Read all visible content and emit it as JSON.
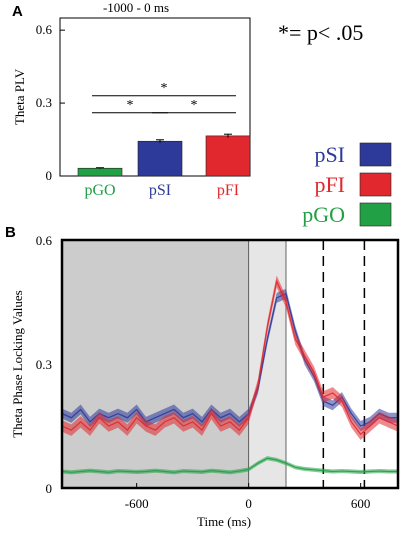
{
  "panel_a": {
    "label": "A",
    "window_title": "-1000 - 0 ms",
    "sig_note": "*= p< .05",
    "significance_marker": "*"
  },
  "panel_b": {
    "label": "B"
  },
  "legend": [
    {
      "name": "pSI",
      "color": "#2e3a9a"
    },
    {
      "name": "pFI",
      "color": "#e0282e"
    },
    {
      "name": "pGO",
      "color": "#22a046"
    }
  ],
  "chart_data": [
    {
      "type": "bar",
      "title": "-1000 - 0 ms",
      "ylabel": "Theta PLV",
      "categories": [
        "pGO",
        "pSI",
        "pFI"
      ],
      "values": [
        0.032,
        0.143,
        0.165
      ],
      "errors": [
        0.002,
        0.006,
        0.007
      ],
      "colors": [
        "#22a046",
        "#2e3a9a",
        "#e0282e"
      ],
      "ylim": [
        0,
        0.65
      ],
      "yticks": [
        0,
        0.3,
        0.6
      ],
      "ytick_labels": [
        "0",
        "0.3",
        "0.6"
      ],
      "significance": [
        {
          "pair": [
            "pGO",
            "pFI"
          ],
          "level": 0.33
        },
        {
          "pair": [
            "pGO",
            "pSI"
          ],
          "level": 0.26
        },
        {
          "pair": [
            "pSI",
            "pFI"
          ],
          "level": 0.26
        }
      ]
    },
    {
      "type": "line",
      "xlabel": "Time (ms)",
      "ylabel": "Theta Phase Locking Values",
      "xlim": [
        -1000,
        800
      ],
      "ylim": [
        0,
        0.6
      ],
      "xticks": [
        -600,
        0,
        600
      ],
      "xtick_labels": [
        "-600",
        "0",
        "600"
      ],
      "yticks": [
        0,
        0.3,
        0.6
      ],
      "ytick_labels": [
        "0",
        "0.3",
        "0.6"
      ],
      "shaded_regions": [
        {
          "from": -1000,
          "to": 0,
          "color": "#cccccc"
        },
        {
          "from": 0,
          "to": 200,
          "color": "#e6e6e6"
        }
      ],
      "solid_lines": [
        0,
        200
      ],
      "dashed_lines": [
        400,
        620
      ],
      "series": [
        {
          "name": "pSI",
          "color": "#2e3a9a",
          "x": [
            -1000,
            -950,
            -900,
            -850,
            -800,
            -750,
            -700,
            -650,
            -600,
            -550,
            -500,
            -450,
            -400,
            -350,
            -300,
            -250,
            -200,
            -150,
            -100,
            -50,
            0,
            50,
            100,
            150,
            200,
            250,
            300,
            350,
            400,
            450,
            500,
            550,
            600,
            650,
            700,
            750,
            800
          ],
          "y": [
            0.18,
            0.17,
            0.19,
            0.16,
            0.18,
            0.17,
            0.18,
            0.17,
            0.19,
            0.16,
            0.17,
            0.18,
            0.19,
            0.17,
            0.18,
            0.16,
            0.19,
            0.17,
            0.18,
            0.16,
            0.18,
            0.24,
            0.36,
            0.46,
            0.47,
            0.38,
            0.31,
            0.27,
            0.21,
            0.2,
            0.22,
            0.18,
            0.15,
            0.16,
            0.18,
            0.17,
            0.17
          ],
          "band": 0.012
        },
        {
          "name": "pFI",
          "color": "#e0282e",
          "x": [
            -1000,
            -950,
            -900,
            -850,
            -800,
            -750,
            -700,
            -650,
            -600,
            -550,
            -500,
            -450,
            -400,
            -350,
            -300,
            -250,
            -200,
            -150,
            -100,
            -50,
            0,
            50,
            100,
            150,
            200,
            250,
            300,
            350,
            400,
            450,
            500,
            550,
            600,
            650,
            700,
            750,
            800
          ],
          "y": [
            0.15,
            0.14,
            0.16,
            0.14,
            0.17,
            0.15,
            0.16,
            0.14,
            0.17,
            0.15,
            0.14,
            0.16,
            0.17,
            0.15,
            0.16,
            0.14,
            0.18,
            0.15,
            0.16,
            0.14,
            0.17,
            0.25,
            0.39,
            0.5,
            0.45,
            0.36,
            0.32,
            0.28,
            0.22,
            0.23,
            0.21,
            0.16,
            0.13,
            0.15,
            0.17,
            0.16,
            0.15
          ],
          "band": 0.014
        },
        {
          "name": "pGO",
          "color": "#22a046",
          "x": [
            -1000,
            -950,
            -900,
            -850,
            -800,
            -750,
            -700,
            -650,
            -600,
            -550,
            -500,
            -450,
            -400,
            -350,
            -300,
            -250,
            -200,
            -150,
            -100,
            -50,
            0,
            50,
            100,
            150,
            200,
            250,
            300,
            350,
            400,
            450,
            500,
            550,
            600,
            650,
            700,
            750,
            800
          ],
          "y": [
            0.04,
            0.038,
            0.04,
            0.042,
            0.04,
            0.038,
            0.041,
            0.04,
            0.039,
            0.04,
            0.042,
            0.04,
            0.038,
            0.041,
            0.04,
            0.039,
            0.042,
            0.04,
            0.038,
            0.041,
            0.045,
            0.06,
            0.072,
            0.068,
            0.06,
            0.05,
            0.046,
            0.044,
            0.042,
            0.04,
            0.041,
            0.04,
            0.039,
            0.04,
            0.041,
            0.04,
            0.04
          ],
          "band": 0.005
        }
      ]
    }
  ]
}
